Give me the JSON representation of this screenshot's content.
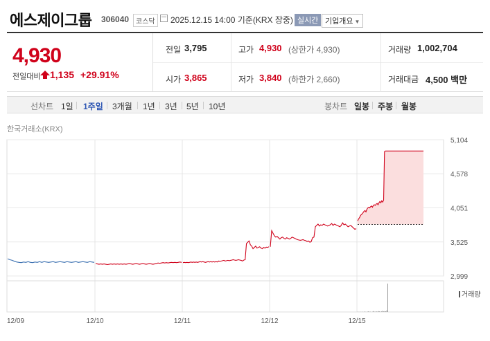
{
  "header": {
    "company_name": "에스제이그룹",
    "code": "306040",
    "market": "코스닥",
    "datetime": "2025.12.15 14:00",
    "basis": "기준(KRX 장중)",
    "live_label": "실시간",
    "overview_label": "기업개요"
  },
  "summary": {
    "price": "4,930",
    "change_label": "전일대비",
    "change": "1,135",
    "change_pct": "+29.91%",
    "prev_close_label": "전일",
    "prev_close": "3,795",
    "open_label": "시가",
    "open": "3,865",
    "high_label": "고가",
    "high": "4,930",
    "upper_limit": "(상한가 4,930)",
    "low_label": "저가",
    "low": "3,840",
    "lower_limit": "(하한가 2,660)",
    "volume_label": "거래량",
    "volume": "1,002,704",
    "amount_label": "거래대금",
    "amount": "4,500",
    "amount_unit": "백만"
  },
  "tabs": {
    "line_label": "선차트",
    "line_items": [
      "1일",
      "1주일",
      "3개월",
      "1년",
      "3년",
      "5년",
      "10년"
    ],
    "line_active": 1,
    "candle_label": "봉차트",
    "candle_items": [
      "일봉",
      "주봉",
      "월봉"
    ]
  },
  "chart": {
    "source": "한국거래소(KRX)",
    "volume_label": "거래량"
  },
  "colors": {
    "up": "#d0021b",
    "flat": "#3a6fb0",
    "fill": "#fbdede",
    "grid": "#e8e8e8"
  },
  "chart_data": {
    "type": "line",
    "ylim": [
      2999,
      5104
    ],
    "yticks": [
      5104,
      4578,
      4051,
      3525,
      2999
    ],
    "ytick_labels": [
      "5,104",
      "4,578",
      "4,051",
      "3,525",
      "2,999"
    ],
    "x_labels": [
      "12/09",
      "12/10",
      "12/11",
      "12/12",
      "12/15"
    ],
    "prev_close": 3795,
    "series": [
      {
        "day": "12/09",
        "color": "blue",
        "values": [
          3265,
          3250,
          3240,
          3225,
          3215,
          3210,
          3205,
          3215,
          3210,
          3220,
          3210,
          3205,
          3215,
          3210,
          3220,
          3210,
          3220,
          3215,
          3210,
          3215,
          3220,
          3210,
          3215,
          3220,
          3215,
          3210,
          3220,
          3215,
          3210,
          3215,
          3220,
          3210,
          3215,
          3220,
          3215,
          3210,
          3220,
          3215,
          3210
        ]
      },
      {
        "day": "12/10",
        "color": "red",
        "values": [
          3190,
          3185,
          3180,
          3185,
          3180,
          3185,
          3180,
          3175,
          3180,
          3185,
          3180,
          3185,
          3180,
          3185,
          3180,
          3185,
          3180,
          3185,
          3180,
          3185,
          3190,
          3185,
          3180,
          3185,
          3190,
          3185,
          3180,
          3185,
          3190,
          3185,
          3180,
          3185,
          3190,
          3185,
          3180,
          3185,
          3190,
          3200,
          3195,
          3200,
          3205,
          3200,
          3205,
          3200,
          3205,
          3210,
          3205,
          3210,
          3205,
          3210,
          3215,
          3210
        ]
      },
      {
        "day": "12/11",
        "color": "red",
        "values": [
          3205,
          3210,
          3205,
          3210,
          3205,
          3210,
          3215,
          3210,
          3215,
          3210,
          3215,
          3210,
          3215,
          3220,
          3215,
          3220,
          3215,
          3210,
          3215,
          3220,
          3215,
          3220,
          3215,
          3220,
          3215,
          3220,
          3215,
          3230,
          3225,
          3230,
          3235,
          3240,
          3230,
          3235,
          3240,
          3235,
          3240,
          3245,
          3250,
          3245,
          3240,
          3245,
          3250,
          3245,
          3240,
          3230,
          3245,
          3250,
          3500,
          3520,
          3540,
          3480,
          3460,
          3420,
          3440,
          3460,
          3430,
          3440,
          3450,
          3430,
          3420,
          3440,
          3430,
          3445,
          3440,
          3450
        ]
      },
      {
        "day": "12/12",
        "color": "red",
        "values": [
          3450,
          3700,
          3660,
          3620,
          3600,
          3610,
          3590,
          3570,
          3590,
          3600,
          3580,
          3570,
          3590,
          3580,
          3570,
          3580,
          3600,
          3590,
          3580,
          3570,
          3560,
          3555,
          3550,
          3555,
          3560,
          3550,
          3545,
          3530,
          3540,
          3520,
          3530,
          3590,
          3600,
          3760,
          3780,
          3800,
          3770,
          3790,
          3780,
          3800,
          3790,
          3780,
          3770,
          3780,
          3790,
          3810,
          3780,
          3800,
          3790,
          3780,
          3770,
          3760,
          3780,
          3820,
          3790,
          3800,
          3780,
          3760,
          3770,
          3780,
          3760,
          3740,
          3720,
          3730
        ]
      },
      {
        "day": "12/15",
        "color": "red",
        "values": [
          3850,
          3880,
          3900,
          3930,
          3950,
          3960,
          3980,
          4000,
          4010,
          3990,
          4030,
          4050,
          4060,
          4050,
          4070,
          4080,
          4060,
          4090,
          4100,
          4090,
          4110,
          4120,
          4100,
          4130,
          4150,
          4130,
          4160,
          4140,
          4170,
          4920,
          4930,
          4930,
          4930,
          4930,
          4930,
          4930,
          4930,
          4930,
          4930,
          4930,
          4930,
          4930,
          4930,
          4930,
          4930,
          4930,
          4930,
          4930,
          4930,
          4930,
          4930,
          4930,
          4930,
          4930,
          4930,
          4930,
          4930,
          4930,
          4930,
          4930,
          4930,
          4930,
          4930,
          4930,
          4930,
          4930,
          4930,
          4930,
          4930,
          4930,
          4930,
          4930
        ]
      }
    ],
    "volume": {
      "values": [
        1,
        0,
        1,
        0,
        1,
        0,
        1,
        1,
        0,
        1,
        2,
        1,
        1,
        0,
        1,
        3,
        1,
        1,
        2,
        1,
        3,
        2,
        1,
        2,
        4,
        2,
        3,
        2,
        5,
        100
      ]
    }
  }
}
